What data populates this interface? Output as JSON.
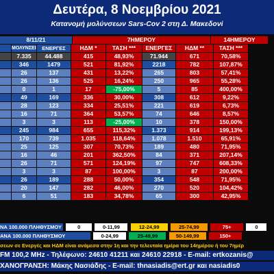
{
  "title": "Δευτέρα, 8 Νοεμβρίου 2021",
  "subtitle": "Κατανομή μολύνσεων Sars-Cov 2 στη Δ. Μακεδονί",
  "header": {
    "date": "8/11/21",
    "group_7d": "7ΗΜΕΡΟΥ",
    "group_14d": "14ΗΜΕΡΟΥ",
    "col_infections": "ΜΟΛΥΝΣΕΙΣ",
    "col_active": "ΕΝΕΡΓΕΣ",
    "col_hdm7": "ΗΔΜ *",
    "col_trend7": "ΤΑΣΗ ***",
    "col_14": "ΕΝΕΡΓΕΣ",
    "col_hdm14": "ΗΔΜ **",
    "col_trend14": "ΤΑΣΗ ***"
  },
  "rows": [
    {
      "infections": "7.335",
      "active": "44.488",
      "hdm7": "415",
      "trend7": "48,93%",
      "a14": "71.944",
      "hdm14": "671",
      "trend14": "70,58%",
      "style": "red"
    },
    {
      "infections": "346",
      "active": "1479",
      "hdm7": "521",
      "trend7": "81,92%",
      "a14": "2218",
      "hdm14": "782",
      "trend14": "107,87%",
      "style": "blue"
    },
    {
      "infections": "26",
      "active": "137",
      "hdm7": "431",
      "trend7": "13,22%",
      "a14": "265",
      "hdm14": "803",
      "trend14": "57,41%",
      "style": "green"
    },
    {
      "infections": "26",
      "active": "136",
      "hdm7": "525",
      "trend7": "16,24%",
      "a14": "250",
      "hdm14": "965",
      "trend14": "55,28%",
      "style": "green"
    },
    {
      "infections": "0",
      "active": "1",
      "hdm7": "17",
      "trend7": "-75,00%",
      "a14": "5",
      "hdm14": "85",
      "trend14": "400,00%",
      "style": "gtrend"
    },
    {
      "infections": "49",
      "active": "169",
      "hdm7": "336",
      "trend7": "30,00%",
      "a14": "308",
      "hdm14": "612",
      "trend14": "9,22%",
      "style": "blue"
    },
    {
      "infections": "28",
      "active": "123",
      "hdm7": "334",
      "trend7": "25,51%",
      "a14": "221",
      "hdm14": "619",
      "trend14": "6,73%",
      "style": "green"
    },
    {
      "infections": "16",
      "active": "71",
      "hdm7": "364",
      "trend7": "53,57%",
      "a14": "74",
      "hdm14": "646",
      "trend14": "8,57%",
      "style": "green"
    },
    {
      "infections": "3",
      "active": "3",
      "hdm7": "113",
      "trend7": "-25,00%",
      "a14": "10",
      "hdm14": "378",
      "trend14": "150,00%",
      "style": "gtrend"
    },
    {
      "infections": "245",
      "active": "984",
      "hdm7": "655",
      "trend7": "115,32%",
      "a14": "1.373",
      "hdm14": "914",
      "trend14": "199,13%",
      "style": "blue"
    },
    {
      "infections": "170",
      "active": "739",
      "hdm7": "1.035",
      "trend7": "118,64%",
      "a14": "1.078",
      "hdm14": "1.510",
      "trend14": "65,91%",
      "style": "green"
    },
    {
      "infections": "25",
      "active": "125",
      "hdm7": "307",
      "trend7": "70,73%",
      "a14": "189",
      "hdm14": "480",
      "trend14": "71,95%",
      "style": "green"
    },
    {
      "infections": "16",
      "active": "46",
      "hdm7": "201",
      "trend7": "362,50%",
      "a14": "84",
      "hdm14": "371",
      "trend14": "207,14%",
      "style": "green"
    },
    {
      "infections": "26",
      "active": "71",
      "hdm7": "571",
      "trend7": "124,19%",
      "a14": "97",
      "hdm14": "747",
      "trend14": "608,33%",
      "style": "green"
    },
    {
      "infections": "3",
      "active": "3",
      "hdm7": "87",
      "trend7": "100,00%",
      "a14": "3",
      "hdm14": "87",
      "trend14": "200,00%",
      "style": "green"
    },
    {
      "infections": "26",
      "active": "189",
      "hdm7": "288",
      "trend7": "50,00%",
      "a14": "354",
      "hdm14": "548",
      "trend14": "71,95%",
      "style": "blue"
    },
    {
      "infections": "20",
      "active": "147",
      "hdm7": "282",
      "trend7": "46,00%",
      "a14": "270",
      "hdm14": "520",
      "trend14": "104,42%",
      "style": "green"
    },
    {
      "infections": "6",
      "active": "51",
      "hdm7": "183",
      "trend7": "34,78%",
      "a14": "65",
      "hdm14": "300",
      "trend14": "42,95%",
      "style": "green"
    }
  ],
  "legend": {
    "label1": "ΝΑ 100.000 ΠΛΗΘΥΣΜΟΥ",
    "label2": "ΑΝΑ 100.000 ΠΛΗΘΥΣΜΟΥ",
    "row1": [
      "0",
      "0-11,99",
      "12-24,99",
      "25-74,99",
      "75+",
      "0"
    ],
    "row2": [
      "0-24,99",
      "25-49,99",
      "50-149,99",
      "150+"
    ]
  },
  "footer": {
    "note": "σεων σε Ενεργές και ΗΔΜ είναι ανάμεσα στην 1η και την τελευταία ημέρα του 14ημέρου ή του 7ημέρ",
    "contact": "FM 100,2 MHz - Τηλέφωνο:  24610 41211 και 24610 22918  - E-mail: ertkozanis@",
    "credit": "ΧΑΝΟΓΡΑΝΣΗ: Μάκης Νασιάδης   -  E-mail: thnasiadis@ert.gr και nasiadis0"
  },
  "colors": {
    "title_bg": "#0d2a78",
    "red": "#c00000",
    "green": "#00b050",
    "blue": "#1f4e9e",
    "orange": "#f79a00",
    "yellow": "#ffd000"
  }
}
